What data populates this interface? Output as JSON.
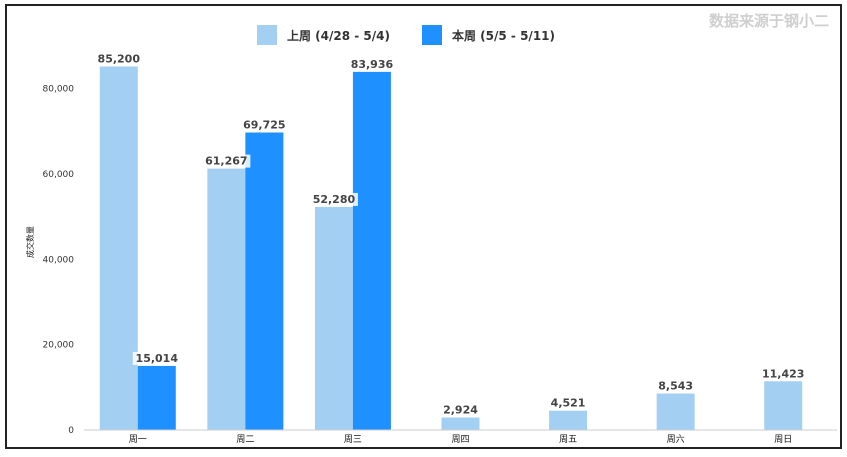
{
  "chart_data": {
    "type": "bar",
    "categories": [
      "周一",
      "周二",
      "周三",
      "周四",
      "周五",
      "周六",
      "周日"
    ],
    "series": [
      {
        "name": "上周 (4/28 - 5/4)",
        "values": [
          85200,
          61267,
          52280,
          2924,
          4521,
          8543,
          11423
        ],
        "labels": [
          "85,200",
          "61,267",
          "52,280",
          "2,924",
          "4,521",
          "8,543",
          "11,423"
        ],
        "color": "#a3cff2"
      },
      {
        "name": "本周 (5/5 - 5/11)",
        "values": [
          15014,
          69725,
          83936,
          null,
          null,
          null,
          null
        ],
        "labels": [
          "15,014",
          "69,725",
          "83,936",
          "",
          "",
          "",
          ""
        ],
        "color": "#1e90ff"
      }
    ],
    "ylabel": "成交数量",
    "ylim": [
      0,
      90000
    ],
    "yticks": [
      0,
      20000,
      40000,
      60000,
      80000
    ],
    "ytick_labels": [
      "0",
      "20,000",
      "40,000",
      "60,000",
      "80,000"
    ],
    "grid": false,
    "legend": "top-center",
    "source_note": "数据来源于钢小二"
  }
}
